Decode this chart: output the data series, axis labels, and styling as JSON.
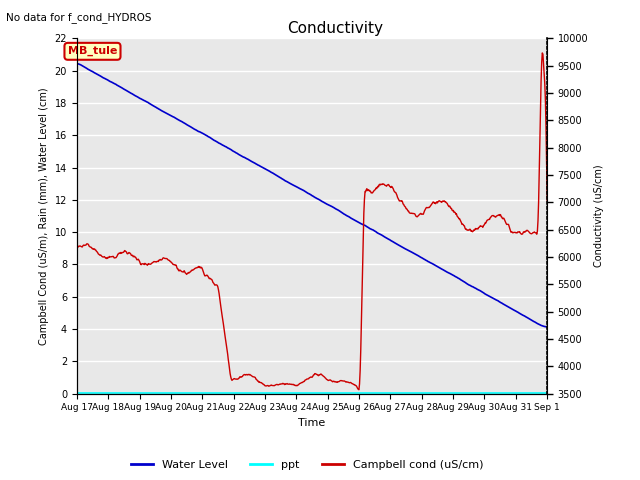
{
  "title": "Conductivity",
  "top_left_text": "No data for f_cond_HYDROS",
  "xlabel": "Time",
  "ylabel_left": "Campbell Cond (uS/m), Rain (mm), Water Level (cm)",
  "ylabel_right": "Conductivity (uS/cm)",
  "ylim_left": [
    0,
    22
  ],
  "ylim_right": [
    3500,
    10000
  ],
  "yticks_left": [
    0,
    2,
    4,
    6,
    8,
    10,
    12,
    14,
    16,
    18,
    20,
    22
  ],
  "yticks_right": [
    3500,
    4000,
    4500,
    5000,
    5500,
    6000,
    6500,
    7000,
    7500,
    8000,
    8500,
    9000,
    9500,
    10000
  ],
  "xtick_labels": [
    "Aug 17",
    "Aug 18",
    "Aug 19",
    "Aug 20",
    "Aug 21",
    "Aug 22",
    "Aug 23",
    "Aug 24",
    "Aug 25",
    "Aug 26",
    "Aug 27",
    "Aug 28",
    "Aug 29",
    "Aug 30",
    "Aug 31",
    "Sep 1"
  ],
  "annotation_box_text": "MB_tule",
  "annotation_box_color": "#FFFFC0",
  "annotation_box_edgecolor": "#CC0000",
  "background_color": "#E8E8E8",
  "grid_color": "white",
  "legend_items": [
    "Water Level",
    "ppt",
    "Campbell cond (uS/cm)"
  ],
  "water_level_color": "#0000CC",
  "ppt_color": "cyan",
  "campbell_color": "#CC0000",
  "figwidth": 6.4,
  "figheight": 4.8,
  "dpi": 100
}
